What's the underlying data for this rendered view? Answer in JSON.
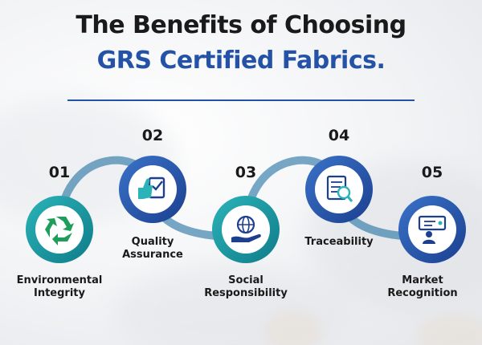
{
  "title": {
    "line1": "The Benefits of Choosing",
    "line2": "GRS Certified Fabrics."
  },
  "colors": {
    "title_accent": "#2452a6",
    "teal_dark": "#0f7c8a",
    "teal_light": "#2bb3b8",
    "blue_dark": "#1c3f8f",
    "blue_light": "#3a73c9"
  },
  "benefits": [
    {
      "number": "01",
      "label_line1": "Environmental",
      "label_line2": "Integrity",
      "icon": "recycle-icon"
    },
    {
      "number": "02",
      "label_line1": "Quality",
      "label_line2": "Assurance",
      "icon": "quality-check-icon"
    },
    {
      "number": "03",
      "label_line1": "Social",
      "label_line2": "Responsibility",
      "icon": "globe-hand-icon"
    },
    {
      "number": "04",
      "label_line1": "Traceability",
      "label_line2": "",
      "icon": "document-search-icon"
    },
    {
      "number": "05",
      "label_line1": "Market",
      "label_line2": "Recognition",
      "icon": "presentation-icon"
    }
  ]
}
